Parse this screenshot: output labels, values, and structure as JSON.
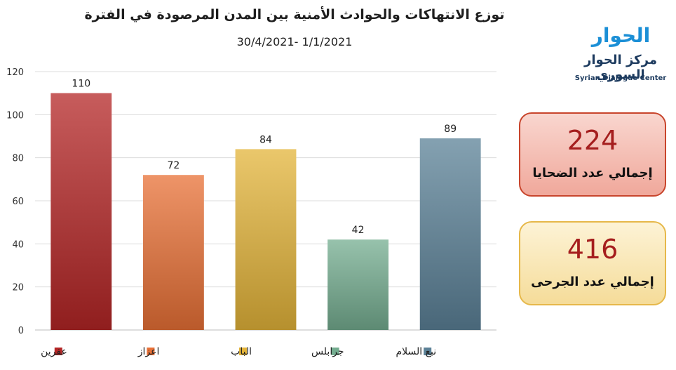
{
  "title": "توزع الانتهاكات والحوادث الأمنية بين المدن المرصودة في الفترة",
  "subtitle": "30/4/2021- 1/1/2021",
  "logo": {
    "mark": "الحوار",
    "arabic": "مركز الحوار السوري",
    "english": "Syrian Dialogue Center"
  },
  "stats": [
    {
      "value": "224",
      "label": "إجمالي عدد الضحايا"
    },
    {
      "value": "416",
      "label": "إجمالي عدد الجرحى"
    }
  ],
  "chart_data": {
    "type": "bar",
    "categories": [
      "عفرين",
      "اعزاز",
      "الباب",
      "جرابلس",
      "نبع السلام"
    ],
    "values": [
      110,
      72,
      84,
      42,
      89
    ],
    "colors": [
      "#b42525",
      "#e87036",
      "#e3b43a",
      "#74ad90",
      "#5b8197"
    ],
    "ylim": [
      0,
      120
    ],
    "yticks": [
      0,
      20,
      40,
      60,
      80,
      100,
      120
    ],
    "grid": true,
    "legend": "bottom"
  }
}
